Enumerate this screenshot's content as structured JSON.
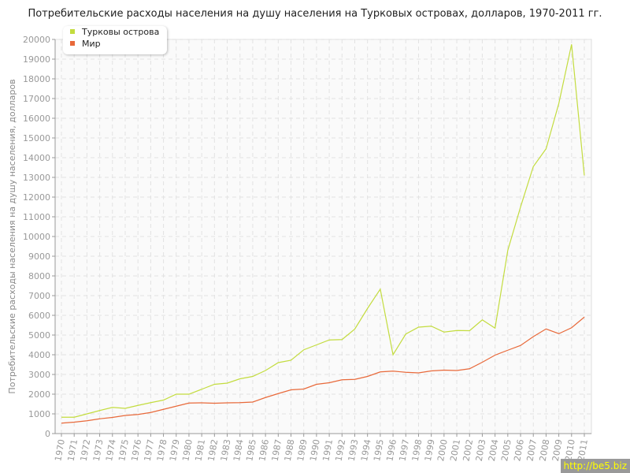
{
  "chart_data": {
    "type": "line",
    "title": "Потребительские расходы населения на душу населения на Турковых островах, долларов, 1970-2011 гг.",
    "ylabel": "Потребительские расходы населения на душу населения, долларов",
    "xlabel": "",
    "ylim": [
      0,
      20000
    ],
    "ytick_step": 1000,
    "grid": true,
    "legend": "top-left",
    "x": [
      1970,
      1971,
      1972,
      1973,
      1974,
      1975,
      1976,
      1977,
      1978,
      1979,
      1980,
      1981,
      1982,
      1983,
      1984,
      1985,
      1986,
      1987,
      1988,
      1989,
      1990,
      1991,
      1992,
      1993,
      1994,
      1995,
      1996,
      1997,
      1998,
      1999,
      2000,
      2001,
      2002,
      2003,
      2004,
      2005,
      2006,
      2007,
      2008,
      2009,
      2010,
      2011
    ],
    "series": [
      {
        "name": "Турковы острова",
        "color": "#c3dc3e",
        "values": [
          830,
          830,
          1000,
          1170,
          1330,
          1280,
          1430,
          1570,
          1700,
          2000,
          2000,
          2250,
          2500,
          2560,
          2780,
          2900,
          3200,
          3600,
          3720,
          4250,
          4500,
          4750,
          4770,
          5300,
          6350,
          7330,
          4000,
          5050,
          5400,
          5450,
          5150,
          5230,
          5220,
          5770,
          5350,
          9300,
          11500,
          13550,
          14450,
          16750,
          19750,
          13100
        ]
      },
      {
        "name": "Мир",
        "color": "#e8693a",
        "values": [
          530,
          580,
          650,
          750,
          820,
          920,
          970,
          1070,
          1230,
          1390,
          1550,
          1560,
          1540,
          1560,
          1570,
          1600,
          1830,
          2030,
          2220,
          2260,
          2500,
          2580,
          2730,
          2750,
          2900,
          3130,
          3170,
          3110,
          3080,
          3180,
          3220,
          3200,
          3290,
          3620,
          3980,
          4230,
          4470,
          4920,
          5310,
          5070,
          5370,
          5910
        ]
      }
    ]
  },
  "watermark": "http://be5.biz"
}
